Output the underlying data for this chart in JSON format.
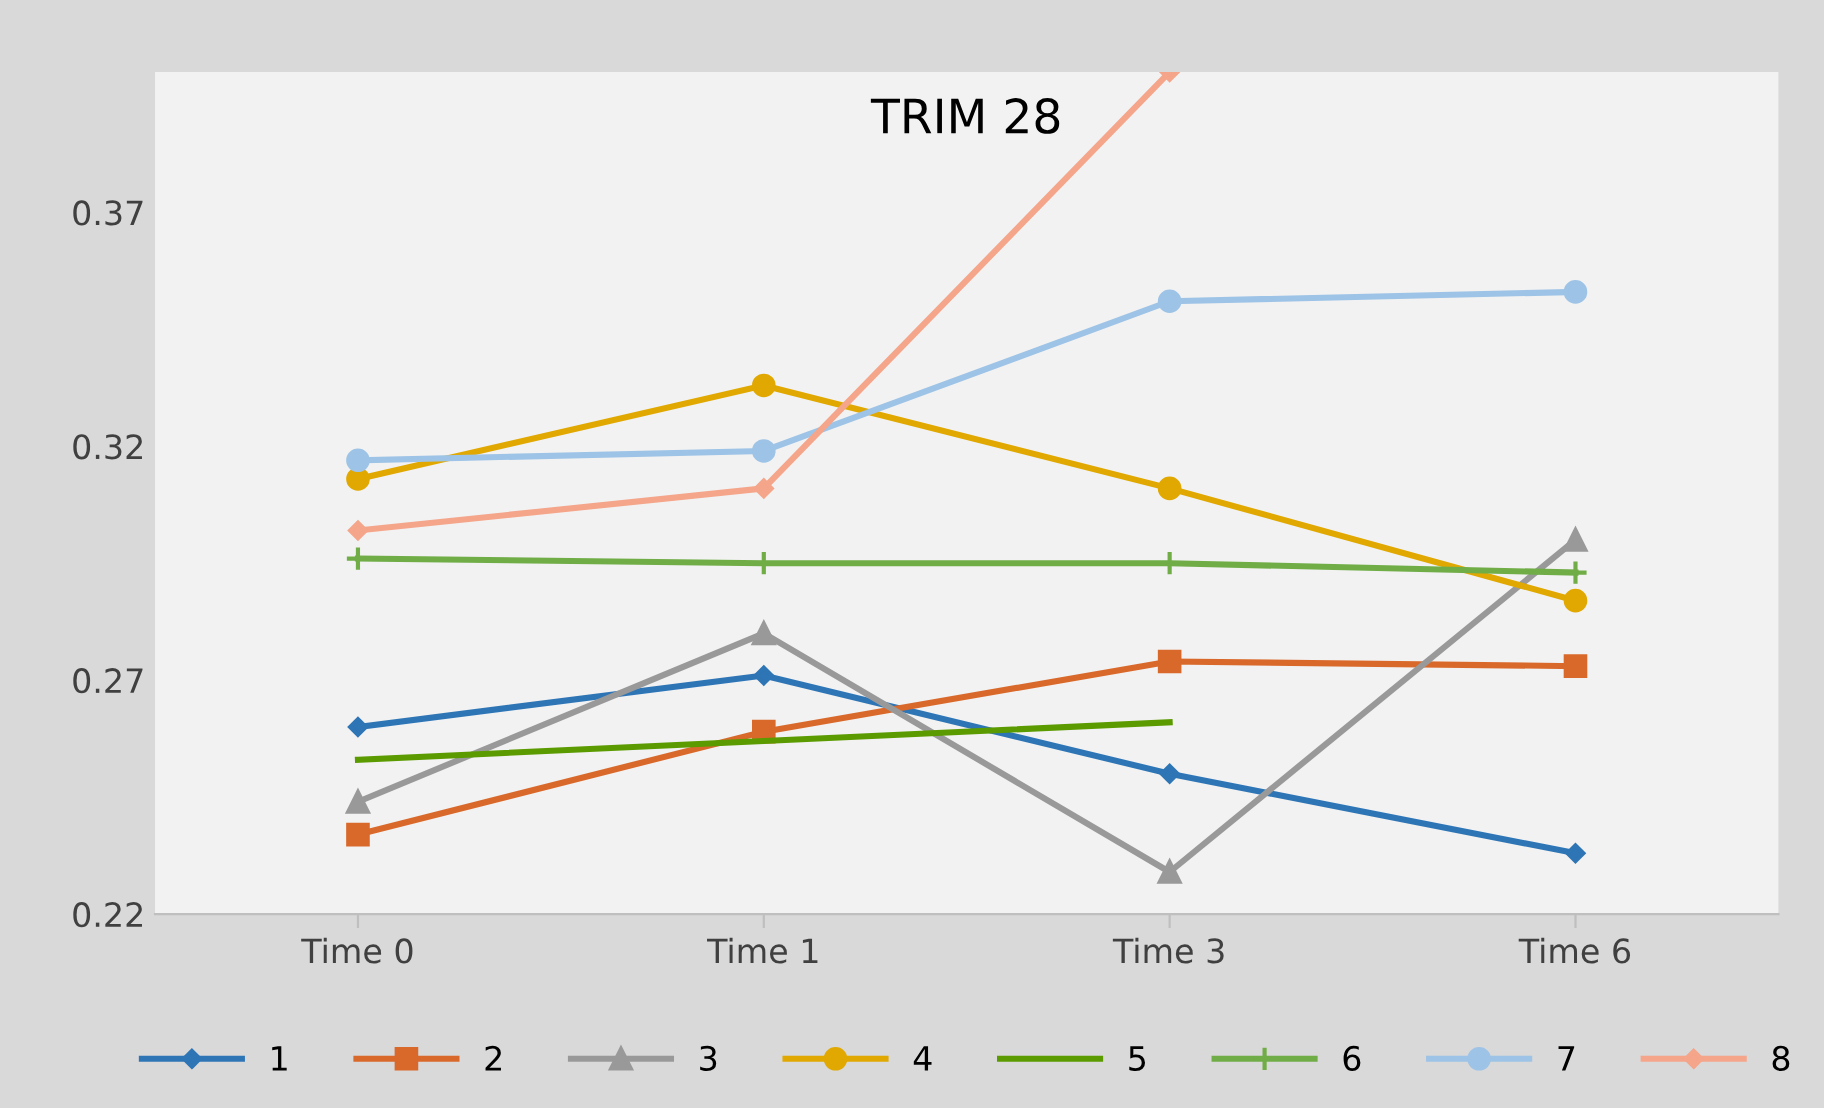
{
  "chart_data": {
    "type": "line",
    "title": "TRIM 28",
    "categories": [
      "Time 0",
      "Time 1",
      "Time 3",
      "Time 6"
    ],
    "series": [
      {
        "name": "1",
        "color": "#2e75b6",
        "marker": "diamond",
        "values": [
          0.26,
          0.271,
          0.25,
          0.233
        ]
      },
      {
        "name": "2",
        "color": "#d9692b",
        "marker": "square",
        "values": [
          0.237,
          0.259,
          0.274,
          0.273
        ]
      },
      {
        "name": "3",
        "color": "#999999",
        "marker": "triangle",
        "values": [
          0.244,
          0.28,
          0.229,
          0.3
        ]
      },
      {
        "name": "4",
        "color": "#e0a800",
        "marker": "circle",
        "values": [
          0.313,
          0.333,
          0.311,
          0.287
        ]
      },
      {
        "name": "5",
        "color": "#5b9b00",
        "marker": "none",
        "values": [
          0.253,
          0.257,
          0.261,
          null
        ]
      },
      {
        "name": "6",
        "color": "#70ad47",
        "marker": "cross",
        "values": [
          0.296,
          0.295,
          0.295,
          0.293
        ]
      },
      {
        "name": "7",
        "color": "#9dc3e6",
        "marker": "circle",
        "values": [
          0.317,
          0.319,
          0.351,
          0.353
        ]
      },
      {
        "name": "8",
        "color": "#f4a58a",
        "marker": "diamond",
        "values": [
          0.302,
          0.311,
          0.4,
          null
        ]
      }
    ],
    "ylim": [
      0.22,
      0.4
    ],
    "yticks": [
      0.22,
      0.27,
      0.32,
      0.37
    ],
    "grid": false,
    "legend": "bottom"
  }
}
